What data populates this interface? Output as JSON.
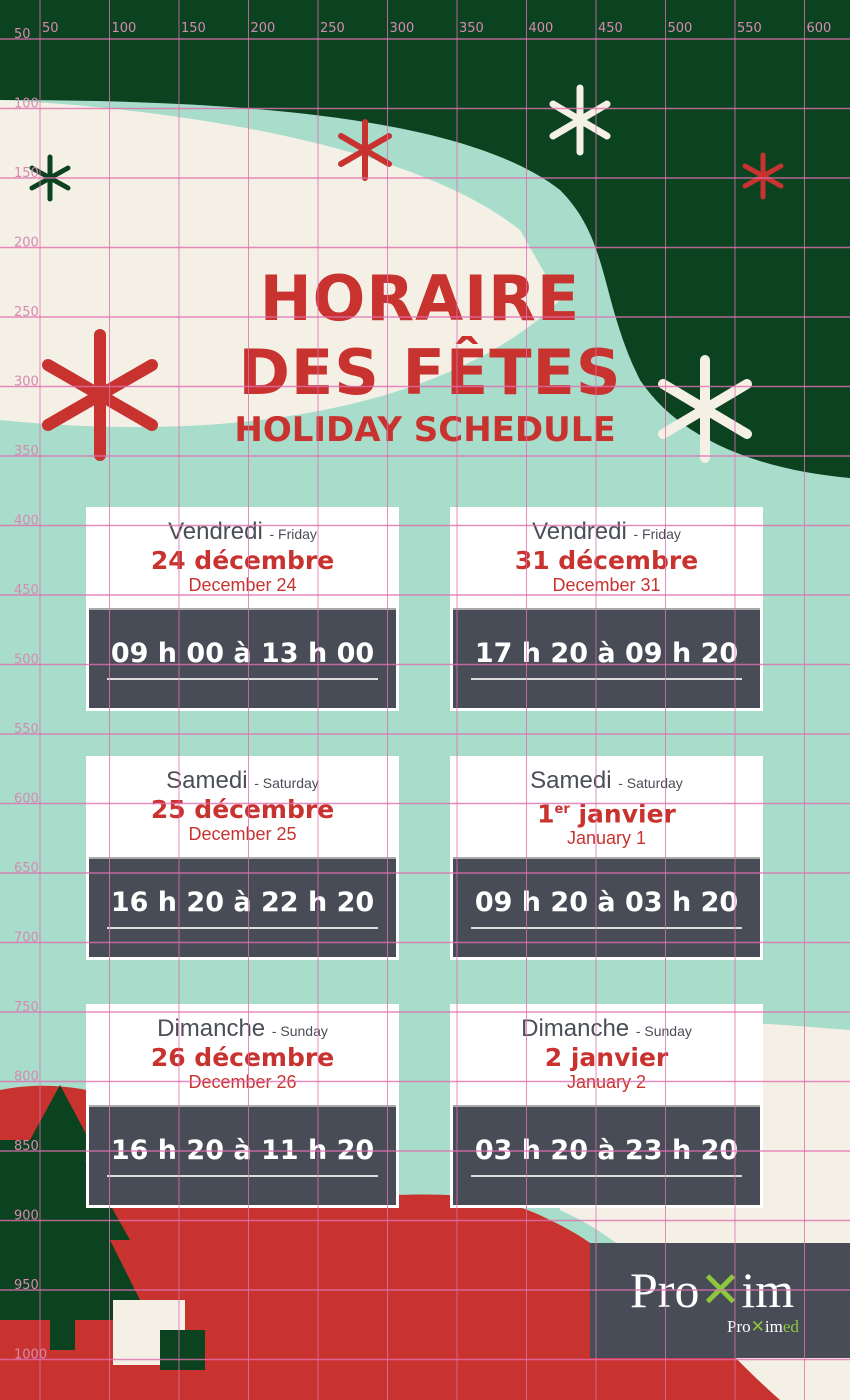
{
  "title": {
    "line1": "HORAIRE",
    "line2": "DES FÊTES",
    "line3": "HOLIDAY SCHEDULE"
  },
  "cards": [
    {
      "day_fr": "Vendredi",
      "day_en": "- Friday",
      "date_fr": "24 décembre",
      "date_en": "December 24",
      "hours": "09 h 00 à 13 h 00"
    },
    {
      "day_fr": "Vendredi",
      "day_en": "- Friday",
      "date_fr": "31 décembre",
      "date_en": "December 31",
      "hours": "17 h 20 à 09 h 20"
    },
    {
      "day_fr": "Samedi",
      "day_en": "- Saturday",
      "date_fr": "25 décembre",
      "date_en": "December 25",
      "hours": "16 h 20 à 22 h 20"
    },
    {
      "day_fr": "Samedi",
      "day_en": "- Saturday",
      "date_fr": "1",
      "date_sup": "er",
      "date_rest": " janvier",
      "date_en": "January 1",
      "hours": "09 h 20 à 03 h 20"
    },
    {
      "day_fr": "Dimanche",
      "day_en": "- Sunday",
      "date_fr": "26 décembre",
      "date_en": "December 26",
      "hours": "16 h 20 à 11 h 20"
    },
    {
      "day_fr": "Dimanche",
      "day_en": "- Sunday",
      "date_fr": "2 janvier",
      "date_en": "January 2",
      "hours": "03 h 20 à 23 h 20"
    }
  ],
  "logo": {
    "brand": "Proxim",
    "sub": "Proximed"
  },
  "grid": {
    "x_labels": [
      "50",
      "100",
      "150",
      "200",
      "250",
      "300",
      "350",
      "400",
      "450",
      "500",
      "550",
      "600"
    ],
    "y_labels": [
      "50",
      "100",
      "150",
      "200",
      "250",
      "300",
      "350",
      "400",
      "450",
      "500",
      "550",
      "600",
      "650",
      "700",
      "750",
      "800",
      "850",
      "900",
      "950",
      "1000"
    ]
  },
  "colors": {
    "green": "#0b4220",
    "red": "#c8322f",
    "mint": "#a8dccb",
    "cream": "#f5f0e6",
    "slate": "#484c56",
    "grid": "#e070b0"
  }
}
